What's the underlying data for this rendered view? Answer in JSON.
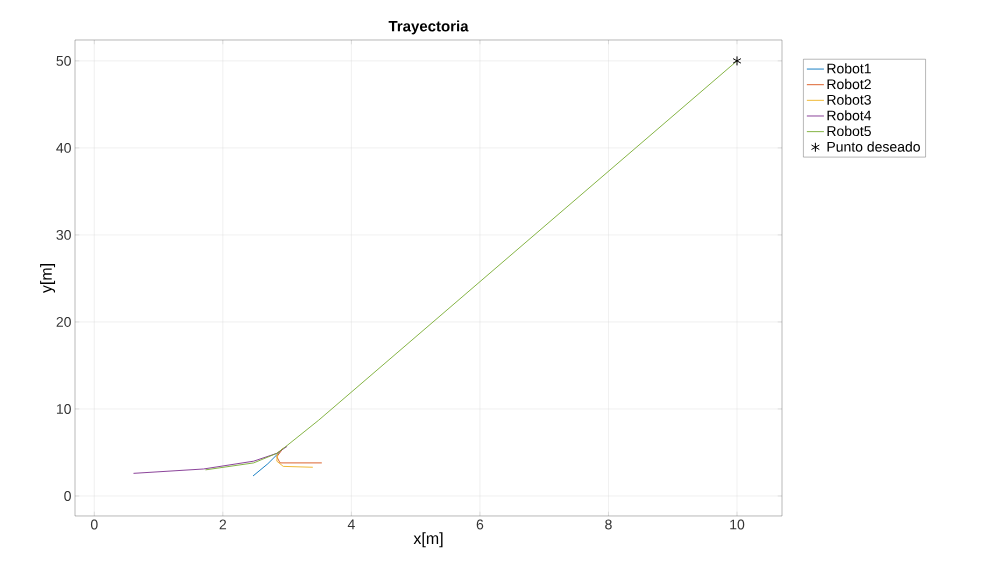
{
  "chart_data": {
    "type": "line",
    "title": "Trayectoria",
    "xlabel": "x[m]",
    "ylabel": "y[m]",
    "xlim": [
      -0.3,
      10.7
    ],
    "ylim": [
      -2.3,
      52.4
    ],
    "xticks": [
      0,
      2,
      4,
      6,
      8,
      10
    ],
    "yticks": [
      0,
      10,
      20,
      30,
      40,
      50
    ],
    "grid": true,
    "legend": "right",
    "marker": "none",
    "series": [
      {
        "name": "Robot1",
        "color": "#0072bd",
        "x": [
          2.47,
          2.7,
          2.89
        ],
        "values": [
          2.3,
          3.7,
          5.1
        ]
      },
      {
        "name": "Robot2",
        "color": "#d95319",
        "x": [
          3.54,
          3.2,
          2.89,
          2.84,
          2.92
        ],
        "values": [
          3.8,
          3.8,
          3.8,
          4.5,
          5.3
        ]
      },
      {
        "name": "Robot3",
        "color": "#edb120",
        "x": [
          3.4,
          2.94,
          2.84,
          2.85,
          2.94
        ],
        "values": [
          3.3,
          3.4,
          4.0,
          4.9,
          5.5
        ]
      },
      {
        "name": "Robot4",
        "color": "#7e2f8e",
        "x": [
          0.61,
          1.7,
          2.48,
          2.84,
          3.0
        ],
        "values": [
          2.6,
          3.1,
          4.0,
          4.9,
          5.7
        ]
      },
      {
        "name": "Robot5",
        "color": "#77ac30",
        "x": [
          1.73,
          2.48,
          2.84,
          3.0,
          3.49,
          10
        ],
        "values": [
          3.0,
          3.8,
          4.9,
          5.8,
          8.7,
          50
        ]
      },
      {
        "name": "Punto deseado",
        "type": "scatter",
        "marker": "cross",
        "color": "#000000",
        "x": [
          10
        ],
        "values": [
          50
        ]
      }
    ]
  }
}
